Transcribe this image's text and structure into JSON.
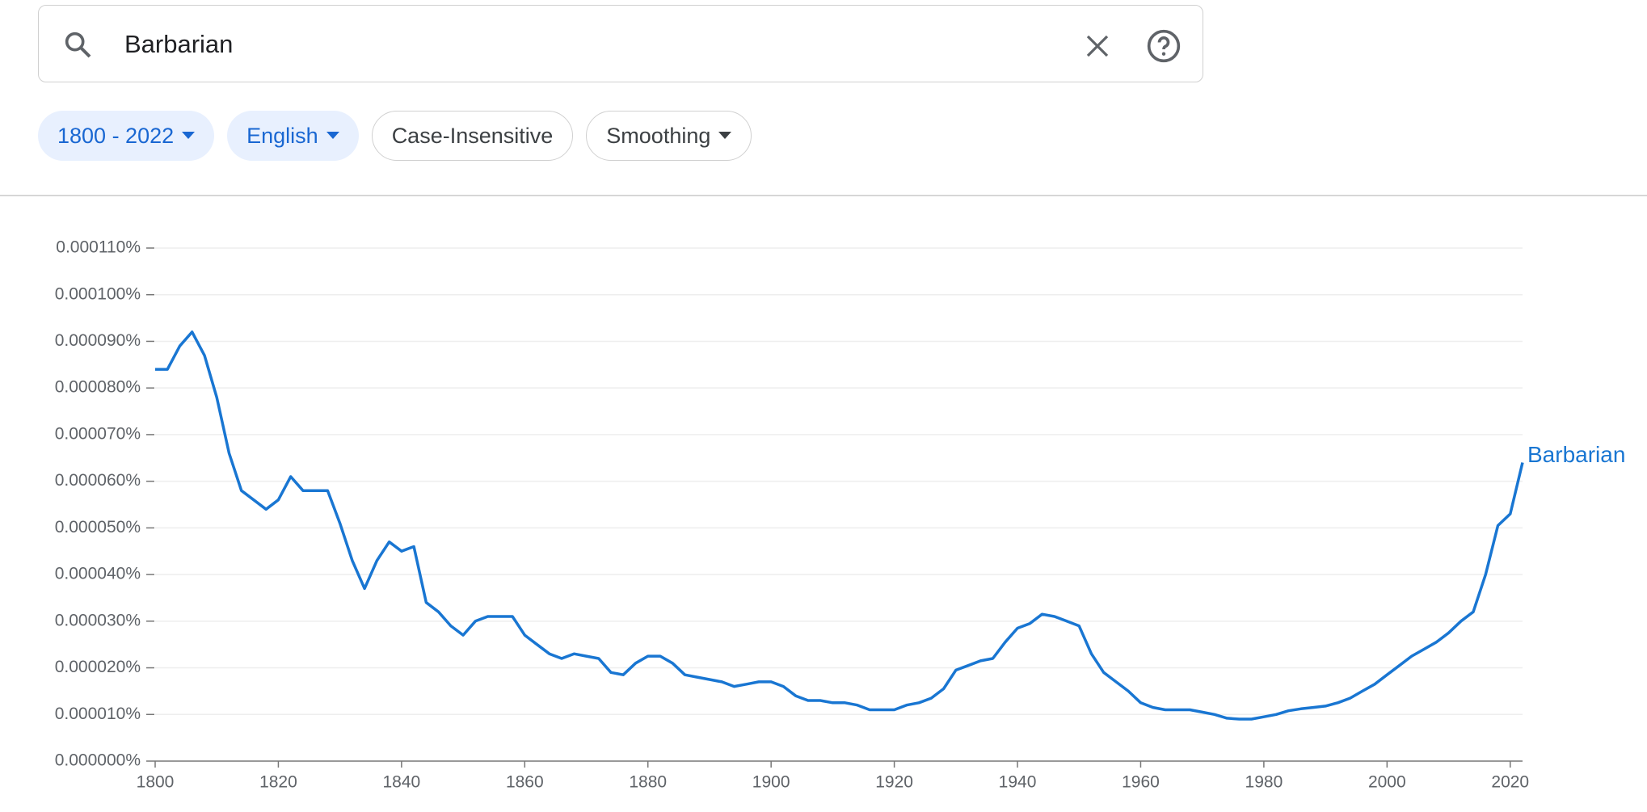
{
  "search": {
    "query": "Barbarian"
  },
  "chips": [
    {
      "label": "1800 - 2022"
    },
    {
      "label": "English"
    },
    {
      "label": "Case-Insensitive"
    },
    {
      "label": "Smoothing"
    }
  ],
  "chart_data": {
    "type": "line",
    "grid": true,
    "x": [
      1800,
      1802,
      1804,
      1806,
      1808,
      1810,
      1812,
      1814,
      1816,
      1818,
      1820,
      1822,
      1824,
      1826,
      1828,
      1830,
      1832,
      1834,
      1836,
      1838,
      1840,
      1842,
      1844,
      1846,
      1848,
      1850,
      1852,
      1854,
      1856,
      1858,
      1860,
      1862,
      1864,
      1866,
      1868,
      1870,
      1872,
      1874,
      1876,
      1878,
      1880,
      1882,
      1884,
      1886,
      1888,
      1890,
      1892,
      1894,
      1896,
      1898,
      1900,
      1902,
      1904,
      1906,
      1908,
      1910,
      1912,
      1914,
      1916,
      1918,
      1920,
      1922,
      1924,
      1926,
      1928,
      1930,
      1932,
      1934,
      1936,
      1938,
      1940,
      1942,
      1944,
      1946,
      1948,
      1950,
      1952,
      1954,
      1956,
      1958,
      1960,
      1962,
      1964,
      1966,
      1968,
      1970,
      1972,
      1974,
      1976,
      1978,
      1980,
      1982,
      1984,
      1986,
      1988,
      1990,
      1992,
      1994,
      1996,
      1998,
      2000,
      2002,
      2004,
      2006,
      2008,
      2010,
      2012,
      2014,
      2016,
      2018,
      2020,
      2022
    ],
    "series": [
      {
        "name": "Barbarian",
        "color": "#1976d2",
        "values": [
          8.4e-05,
          8.4e-05,
          8.9e-05,
          9.2e-05,
          8.7e-05,
          7.8e-05,
          6.6e-05,
          5.8e-05,
          5.6e-05,
          5.4e-05,
          5.6e-05,
          6.1e-05,
          5.8e-05,
          5.8e-05,
          5.8e-05,
          5.1e-05,
          4.3e-05,
          3.7e-05,
          4.3e-05,
          4.7e-05,
          4.5e-05,
          4.6e-05,
          3.4e-05,
          3.2e-05,
          2.9e-05,
          2.7e-05,
          3e-05,
          3.1e-05,
          3.1e-05,
          3.1e-05,
          2.7e-05,
          2.5e-05,
          2.3e-05,
          2.2e-05,
          2.3e-05,
          2.25e-05,
          2.2e-05,
          1.9e-05,
          1.85e-05,
          2.1e-05,
          2.25e-05,
          2.25e-05,
          2.1e-05,
          1.85e-05,
          1.8e-05,
          1.75e-05,
          1.7e-05,
          1.6e-05,
          1.65e-05,
          1.7e-05,
          1.7e-05,
          1.6e-05,
          1.4e-05,
          1.3e-05,
          1.3e-05,
          1.25e-05,
          1.25e-05,
          1.2e-05,
          1.1e-05,
          1.1e-05,
          1.1e-05,
          1.2e-05,
          1.25e-05,
          1.35e-05,
          1.55e-05,
          1.95e-05,
          2.05e-05,
          2.15e-05,
          2.2e-05,
          2.55e-05,
          2.85e-05,
          2.95e-05,
          3.15e-05,
          3.1e-05,
          3e-05,
          2.9e-05,
          2.3e-05,
          1.9e-05,
          1.7e-05,
          1.5e-05,
          1.25e-05,
          1.15e-05,
          1.1e-05,
          1.1e-05,
          1.1e-05,
          1.05e-05,
          1e-05,
          9.2e-06,
          9e-06,
          9e-06,
          9.5e-06,
          1e-05,
          1.08e-05,
          1.12e-05,
          1.15e-05,
          1.18e-05,
          1.25e-05,
          1.35e-05,
          1.5e-05,
          1.65e-05,
          1.85e-05,
          2.05e-05,
          2.25e-05,
          2.4e-05,
          2.55e-05,
          2.75e-05,
          3e-05,
          3.2e-05,
          4e-05,
          5.05e-05,
          5.3e-05,
          6.4e-05
        ]
      }
    ],
    "xlim": [
      1800,
      2022
    ],
    "xticks": [
      1800,
      1820,
      1840,
      1860,
      1880,
      1900,
      1920,
      1940,
      1960,
      1980,
      2000,
      2020
    ],
    "ylim": [
      0,
      0.00011
    ],
    "yticks": [
      {
        "value": 0,
        "label": "0.000000%"
      },
      {
        "value": 1e-05,
        "label": "0.000010%"
      },
      {
        "value": 2e-05,
        "label": "0.000020%"
      },
      {
        "value": 3e-05,
        "label": "0.000030%"
      },
      {
        "value": 4e-05,
        "label": "0.000040%"
      },
      {
        "value": 5e-05,
        "label": "0.000050%"
      },
      {
        "value": 6e-05,
        "label": "0.000060%"
      },
      {
        "value": 7e-05,
        "label": "0.000070%"
      },
      {
        "value": 8e-05,
        "label": "0.000080%"
      },
      {
        "value": 9e-05,
        "label": "0.000090%"
      },
      {
        "value": 0.0001,
        "label": "0.000100%"
      },
      {
        "value": 0.00011,
        "label": "0.000110%"
      }
    ]
  }
}
